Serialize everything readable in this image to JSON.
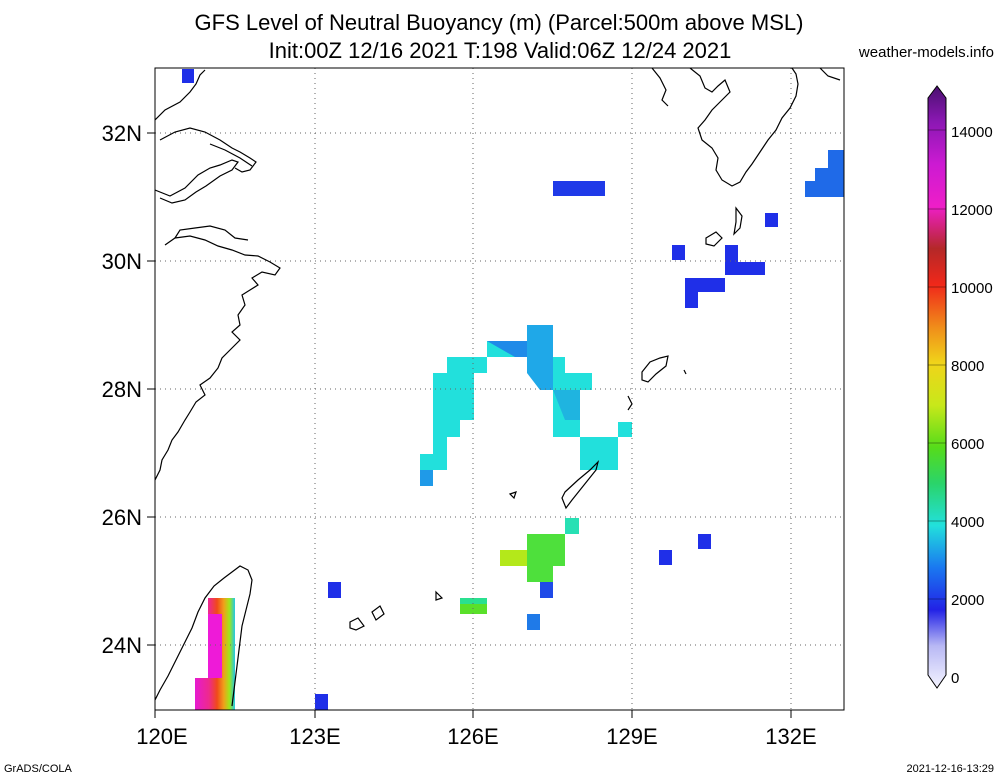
{
  "header": {
    "title_line1": "GFS Level of Neutral Buoyancy (m) (Parcel:500m above MSL)",
    "title_line2": "Init:00Z 12/16 2021 T:198 Valid:06Z 12/24 2021",
    "site": "weather-models.info"
  },
  "footer": {
    "left": "GrADS/COLA",
    "right": "2021-12-16-13:29"
  },
  "map": {
    "lon_labels": [
      "120E",
      "123E",
      "126E",
      "129E",
      "132E"
    ],
    "lat_labels": [
      "32N",
      "30N",
      "28N",
      "26N",
      "24N"
    ],
    "grid": true
  },
  "colorbar": {
    "labels": [
      "0",
      "2000",
      "4000",
      "6000",
      "8000",
      "10000",
      "12000",
      "14000"
    ]
  },
  "colors": {
    "blue": "#1f2fe8",
    "cyan": "#22e0dc",
    "green": "#6ee62a",
    "yellow": "#e8e81a",
    "red": "#e81a1a",
    "magenta": "#e61ad0"
  }
}
